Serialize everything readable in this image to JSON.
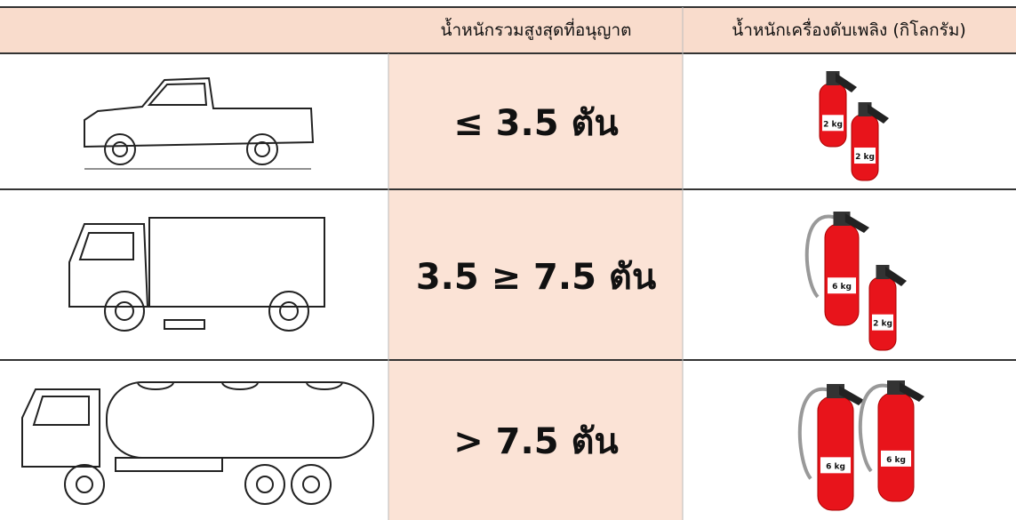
{
  "header": {
    "columns": [
      "น้ำหนักรวมสูงสุดที่อนุญาต",
      "น้ำหนักเครื่องดับเพลิง (กิโลกรัม)"
    ]
  },
  "rows": [
    {
      "weight": "≤ 3.5 ตัน",
      "extinguishers": [
        "2 kg",
        "2 kg"
      ]
    },
    {
      "weight": "3.5 ≥ 7.5 ตัน",
      "extinguishers": [
        "6 kg",
        "2 kg"
      ]
    },
    {
      "weight": "> 7.5 ตัน",
      "extinguishers": [
        "6 kg",
        "6 kg"
      ]
    }
  ]
}
